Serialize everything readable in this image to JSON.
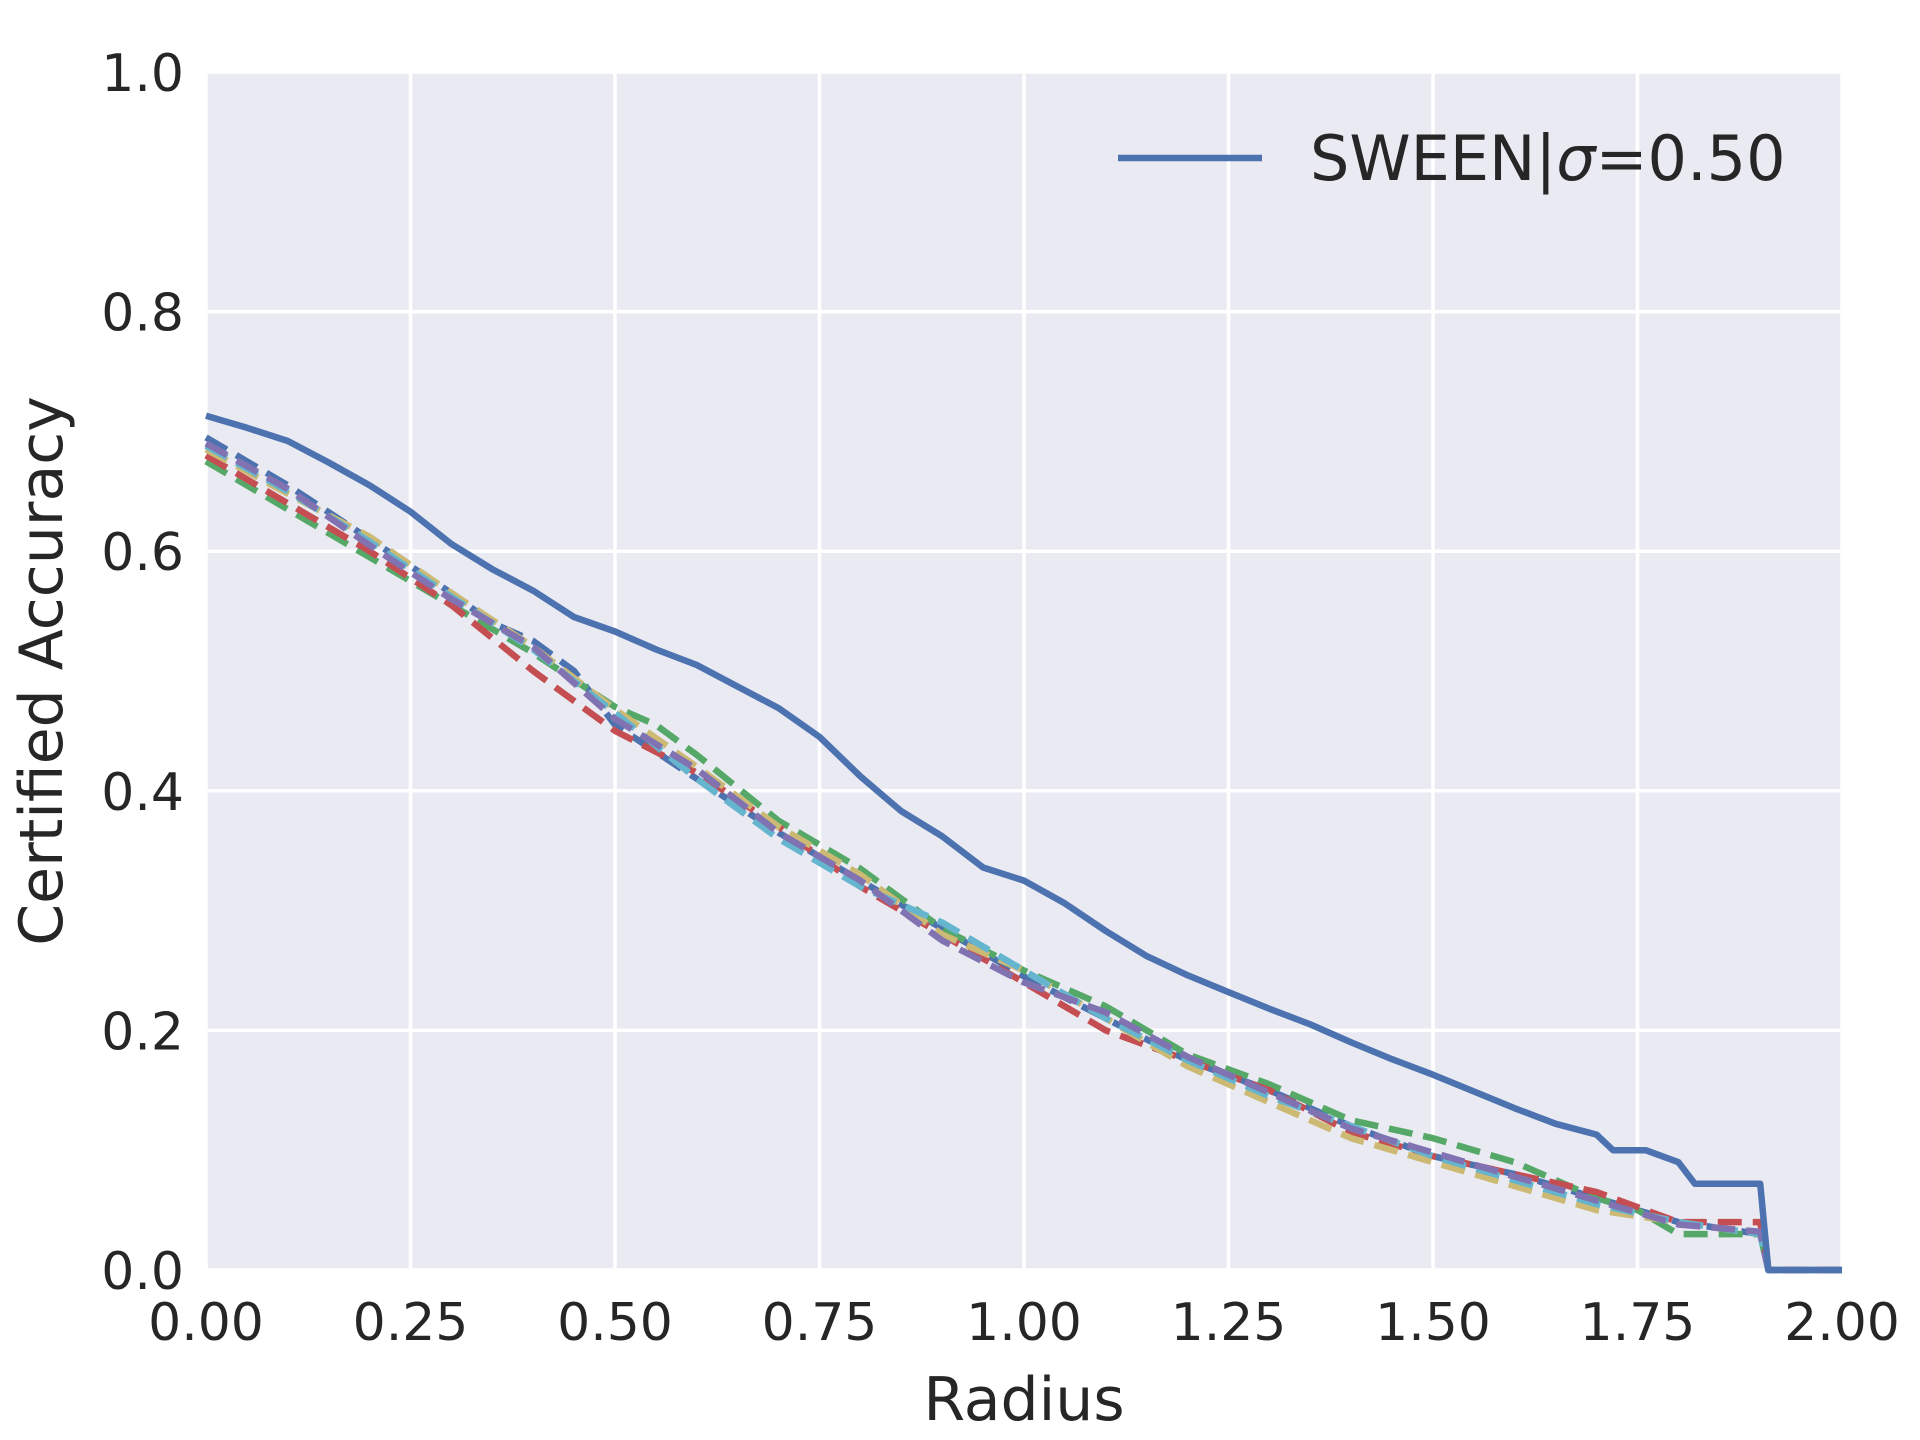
{
  "chart_data": {
    "type": "line",
    "title": "",
    "xlabel": "Radius",
    "ylabel": "Certified Accuracy",
    "xlim": [
      0.0,
      2.0
    ],
    "ylim": [
      0.0,
      1.0
    ],
    "grid": true,
    "background_color": "#eaeaf2",
    "grid_color": "#ffffff",
    "legend_position": "top-right",
    "x_ticks": [
      0.0,
      0.25,
      0.5,
      0.75,
      1.0,
      1.25,
      1.5,
      1.75,
      2.0
    ],
    "x_tick_labels": [
      "0.00",
      "0.25",
      "0.50",
      "0.75",
      "1.00",
      "1.25",
      "1.50",
      "1.75",
      "2.00"
    ],
    "y_ticks": [
      0.0,
      0.2,
      0.4,
      0.6,
      0.8,
      1.0
    ],
    "y_tick_labels": [
      "0.0",
      "0.2",
      "0.4",
      "0.6",
      "0.8",
      "1.0"
    ],
    "legend": [
      {
        "prefix": "SWEEN|",
        "symbol": "σ",
        "suffix": "=0.50",
        "color": "#4c72b0",
        "style": "solid"
      }
    ],
    "series": [
      {
        "name": "SWEEN|σ=0.50",
        "color": "#4c72b0",
        "style": "solid",
        "in_legend": true,
        "x": [
          0.0,
          0.05,
          0.1,
          0.15,
          0.2,
          0.25,
          0.3,
          0.35,
          0.4,
          0.45,
          0.5,
          0.55,
          0.6,
          0.65,
          0.7,
          0.75,
          0.8,
          0.85,
          0.9,
          0.95,
          1.0,
          1.05,
          1.1,
          1.15,
          1.2,
          1.25,
          1.3,
          1.35,
          1.4,
          1.45,
          1.5,
          1.55,
          1.6,
          1.65,
          1.7,
          1.72,
          1.76,
          1.8,
          1.82,
          1.9,
          1.91,
          2.0
        ],
        "y": [
          0.713,
          0.703,
          0.692,
          0.674,
          0.655,
          0.633,
          0.606,
          0.585,
          0.567,
          0.545,
          0.533,
          0.518,
          0.505,
          0.487,
          0.469,
          0.445,
          0.412,
          0.383,
          0.362,
          0.336,
          0.325,
          0.306,
          0.283,
          0.262,
          0.246,
          0.232,
          0.218,
          0.205,
          0.19,
          0.176,
          0.163,
          0.149,
          0.135,
          0.122,
          0.113,
          0.1,
          0.1,
          0.09,
          0.072,
          0.072,
          0.0,
          0.0
        ]
      },
      {
        "name": "dashed-blue",
        "color": "#4c72b0",
        "style": "dashed",
        "in_legend": false,
        "x": [
          0.0,
          0.1,
          0.2,
          0.3,
          0.35,
          0.4,
          0.45,
          0.5,
          0.6,
          0.7,
          0.8,
          0.9,
          1.0,
          1.1,
          1.2,
          1.3,
          1.4,
          1.5,
          1.6,
          1.7,
          1.75,
          1.8,
          1.9,
          1.91,
          2.0
        ],
        "y": [
          0.695,
          0.655,
          0.61,
          0.565,
          0.54,
          0.525,
          0.5,
          0.455,
          0.41,
          0.365,
          0.325,
          0.285,
          0.245,
          0.21,
          0.175,
          0.15,
          0.12,
          0.095,
          0.08,
          0.06,
          0.05,
          0.04,
          0.03,
          0.0,
          0.0
        ]
      },
      {
        "name": "dashed-green",
        "color": "#55a868",
        "style": "dashed",
        "in_legend": false,
        "x": [
          0.0,
          0.1,
          0.2,
          0.3,
          0.4,
          0.5,
          0.55,
          0.6,
          0.7,
          0.8,
          0.9,
          1.0,
          1.1,
          1.2,
          1.3,
          1.4,
          1.5,
          1.6,
          1.7,
          1.75,
          1.8,
          1.9,
          1.91,
          2.0
        ],
        "y": [
          0.675,
          0.635,
          0.595,
          0.555,
          0.515,
          0.47,
          0.455,
          0.43,
          0.375,
          0.335,
          0.285,
          0.25,
          0.22,
          0.18,
          0.155,
          0.125,
          0.11,
          0.09,
          0.06,
          0.05,
          0.03,
          0.03,
          0.0,
          0.0
        ]
      },
      {
        "name": "dashed-red",
        "color": "#c44e52",
        "style": "dashed",
        "in_legend": false,
        "x": [
          0.0,
          0.1,
          0.2,
          0.3,
          0.4,
          0.5,
          0.6,
          0.7,
          0.8,
          0.9,
          1.0,
          1.1,
          1.2,
          1.3,
          1.4,
          1.5,
          1.6,
          1.7,
          1.8,
          1.9,
          1.91,
          2.0
        ],
        "y": [
          0.68,
          0.64,
          0.6,
          0.555,
          0.5,
          0.45,
          0.415,
          0.37,
          0.32,
          0.28,
          0.24,
          0.2,
          0.175,
          0.15,
          0.115,
          0.095,
          0.08,
          0.065,
          0.04,
          0.04,
          0.0,
          0.0
        ]
      },
      {
        "name": "dashed-yellow",
        "color": "#ccb974",
        "style": "dashed",
        "in_legend": false,
        "x": [
          0.0,
          0.1,
          0.2,
          0.3,
          0.4,
          0.5,
          0.6,
          0.7,
          0.8,
          0.9,
          1.0,
          1.1,
          1.2,
          1.3,
          1.4,
          1.5,
          1.6,
          1.7,
          1.8,
          1.9,
          1.91,
          2.0
        ],
        "y": [
          0.685,
          0.648,
          0.612,
          0.565,
          0.52,
          0.468,
          0.42,
          0.37,
          0.33,
          0.28,
          0.25,
          0.21,
          0.17,
          0.14,
          0.11,
          0.09,
          0.07,
          0.05,
          0.04,
          0.03,
          0.0,
          0.0
        ]
      },
      {
        "name": "dashed-cyan",
        "color": "#64b5cd",
        "style": "dashed",
        "in_legend": false,
        "x": [
          0.0,
          0.1,
          0.2,
          0.3,
          0.4,
          0.5,
          0.6,
          0.7,
          0.8,
          0.9,
          1.0,
          1.1,
          1.2,
          1.3,
          1.4,
          1.5,
          1.6,
          1.7,
          1.8,
          1.9,
          1.91,
          2.0
        ],
        "y": [
          0.688,
          0.65,
          0.608,
          0.562,
          0.518,
          0.465,
          0.41,
          0.36,
          0.32,
          0.29,
          0.25,
          0.21,
          0.175,
          0.145,
          0.12,
          0.095,
          0.075,
          0.055,
          0.04,
          0.03,
          0.0,
          0.0
        ]
      },
      {
        "name": "dashed-purple",
        "color": "#8172b2",
        "style": "dashed",
        "in_legend": false,
        "x": [
          0.0,
          0.1,
          0.2,
          0.3,
          0.4,
          0.5,
          0.6,
          0.7,
          0.8,
          0.9,
          1.0,
          1.1,
          1.2,
          1.3,
          1.4,
          1.5,
          1.6,
          1.7,
          1.8,
          1.9,
          1.91,
          2.0
        ],
        "y": [
          0.69,
          0.652,
          0.605,
          0.56,
          0.52,
          0.46,
          0.418,
          0.365,
          0.325,
          0.275,
          0.24,
          0.215,
          0.178,
          0.148,
          0.118,
          0.098,
          0.078,
          0.058,
          0.038,
          0.032,
          0.0,
          0.0
        ]
      }
    ]
  }
}
